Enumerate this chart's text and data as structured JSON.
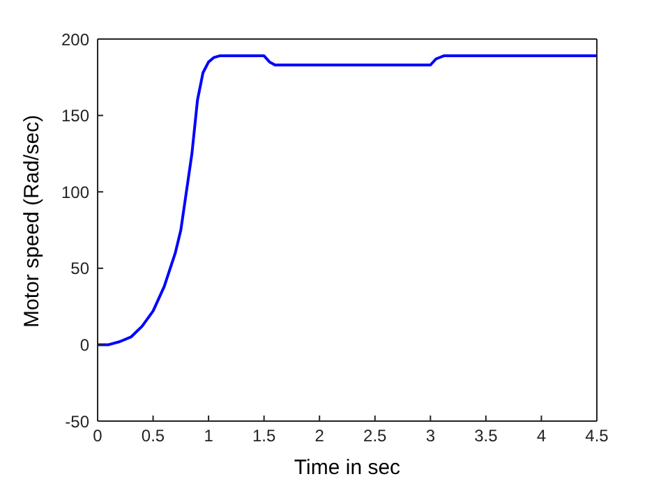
{
  "chart_data": {
    "type": "line",
    "xlabel": "Time in sec",
    "ylabel": "Motor speed (Rad/sec)",
    "xlim": [
      0,
      4.5
    ],
    "ylim": [
      -50,
      200
    ],
    "xticks": [
      0,
      0.5,
      1,
      1.5,
      2,
      2.5,
      3,
      3.5,
      4,
      4.5
    ],
    "yticks": [
      -50,
      0,
      50,
      100,
      150,
      200
    ],
    "marker": "none",
    "line_style": "solid",
    "series": [
      {
        "color": "#0000ff",
        "x": [
          0,
          0.1,
          0.2,
          0.3,
          0.4,
          0.5,
          0.6,
          0.7,
          0.75,
          0.8,
          0.85,
          0.9,
          0.95,
          1.0,
          1.05,
          1.1,
          1.5,
          1.55,
          1.6,
          3.0,
          3.05,
          3.12,
          4.5
        ],
        "values": [
          0,
          0,
          2,
          5,
          12,
          22,
          38,
          60,
          75,
          100,
          125,
          160,
          178,
          185,
          188,
          189,
          189,
          185,
          183,
          183,
          187,
          189,
          189
        ]
      }
    ]
  }
}
